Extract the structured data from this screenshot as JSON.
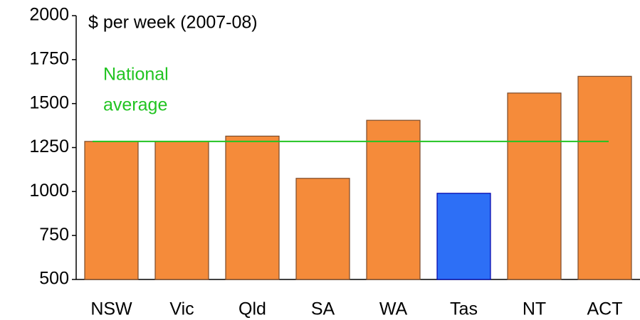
{
  "chart_data": {
    "type": "bar",
    "y_label": "$ per week (2007-08)",
    "categories": [
      "NSW",
      "Vic",
      "Qld",
      "SA",
      "WA",
      "Tas",
      "NT",
      "ACT"
    ],
    "values": [
      1285,
      1285,
      1315,
      1075,
      1405,
      990,
      1560,
      1655
    ],
    "colors": [
      "#f58b3a",
      "#f58b3a",
      "#f58b3a",
      "#f58b3a",
      "#f58b3a",
      "#2d6ff6",
      "#f58b3a",
      "#f58b3a"
    ],
    "ylim": [
      500,
      2000
    ],
    "yticks": [
      500,
      750,
      1000,
      1250,
      1500,
      1750,
      2000
    ],
    "reference_line": {
      "value": 1285,
      "color": "#22c422",
      "label": [
        "National",
        "average"
      ]
    }
  }
}
